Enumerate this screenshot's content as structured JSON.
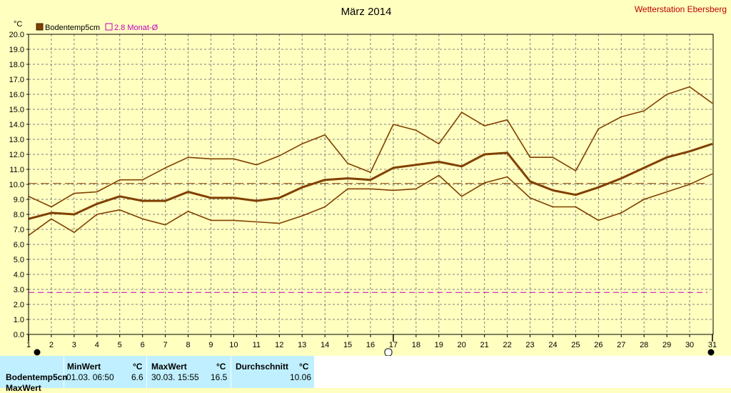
{
  "station": "Wetterstation Ebersberg",
  "chart_data": {
    "type": "line",
    "title": "März 2014",
    "ylabel": "°C",
    "ylim": [
      0,
      20
    ],
    "ytick_step": 1,
    "x": [
      1,
      2,
      3,
      4,
      5,
      6,
      7,
      8,
      9,
      10,
      11,
      12,
      13,
      14,
      15,
      16,
      17,
      18,
      19,
      20,
      21,
      22,
      23,
      24,
      25,
      26,
      27,
      28,
      29,
      30,
      31
    ],
    "grid": true,
    "legend": [
      {
        "name": "Bodentemp5cm",
        "color": "#804000"
      },
      {
        "name": "2.8 Monat-Ø",
        "color": "#C000C0"
      }
    ],
    "series": [
      {
        "name": "Bodentemp5cm",
        "role": "max",
        "color": "#804000",
        "values": [
          9.2,
          8.5,
          9.4,
          9.5,
          10.3,
          10.3,
          11.1,
          11.8,
          11.7,
          11.7,
          11.3,
          11.9,
          12.7,
          13.3,
          11.4,
          10.8,
          14.0,
          13.6,
          12.7,
          14.8,
          13.9,
          14.3,
          11.8,
          11.8,
          10.9,
          13.7,
          14.5,
          14.9,
          16.0,
          16.5,
          15.4
        ]
      },
      {
        "name": "Bodentemp5cm",
        "role": "mean",
        "color": "#804000",
        "values": [
          7.7,
          8.1,
          8.0,
          8.7,
          9.2,
          8.9,
          8.9,
          9.5,
          9.1,
          9.1,
          8.9,
          9.1,
          9.8,
          10.3,
          10.4,
          10.3,
          11.1,
          11.3,
          11.5,
          11.2,
          12.0,
          12.1,
          10.2,
          9.6,
          9.3,
          9.8,
          10.4,
          11.1,
          11.8,
          12.2,
          12.7
        ]
      },
      {
        "name": "Bodentemp5cm",
        "role": "min",
        "color": "#804000",
        "values": [
          6.6,
          7.7,
          6.8,
          8.0,
          8.3,
          7.7,
          7.3,
          8.2,
          7.6,
          7.6,
          7.5,
          7.4,
          7.9,
          8.5,
          9.7,
          9.7,
          9.6,
          9.7,
          10.6,
          9.2,
          10.1,
          10.5,
          9.1,
          8.5,
          8.5,
          7.6,
          8.1,
          9.0,
          9.5,
          10.0,
          10.7
        ]
      }
    ],
    "reference_lines": [
      {
        "name": "Durchschnitt",
        "value": 10.06,
        "color": "#804000",
        "style": "dashed"
      },
      {
        "name": "2.8 Monat-Ø",
        "value": 2.8,
        "color": "#C000C0",
        "style": "dashed"
      }
    ]
  },
  "stats": {
    "headers": {
      "min": "MinWert",
      "max": "MaxWert",
      "avg": "Durchschnitt",
      "unit": "°C"
    },
    "row": {
      "label": "Bodentemp5cm",
      "min_time": "01.03.  06:50",
      "min_value": "6.6",
      "max_time": "30.03.  15:55",
      "max_value": "16.5",
      "avg_value": "10.06"
    },
    "next_row_label": "MaxWert"
  }
}
